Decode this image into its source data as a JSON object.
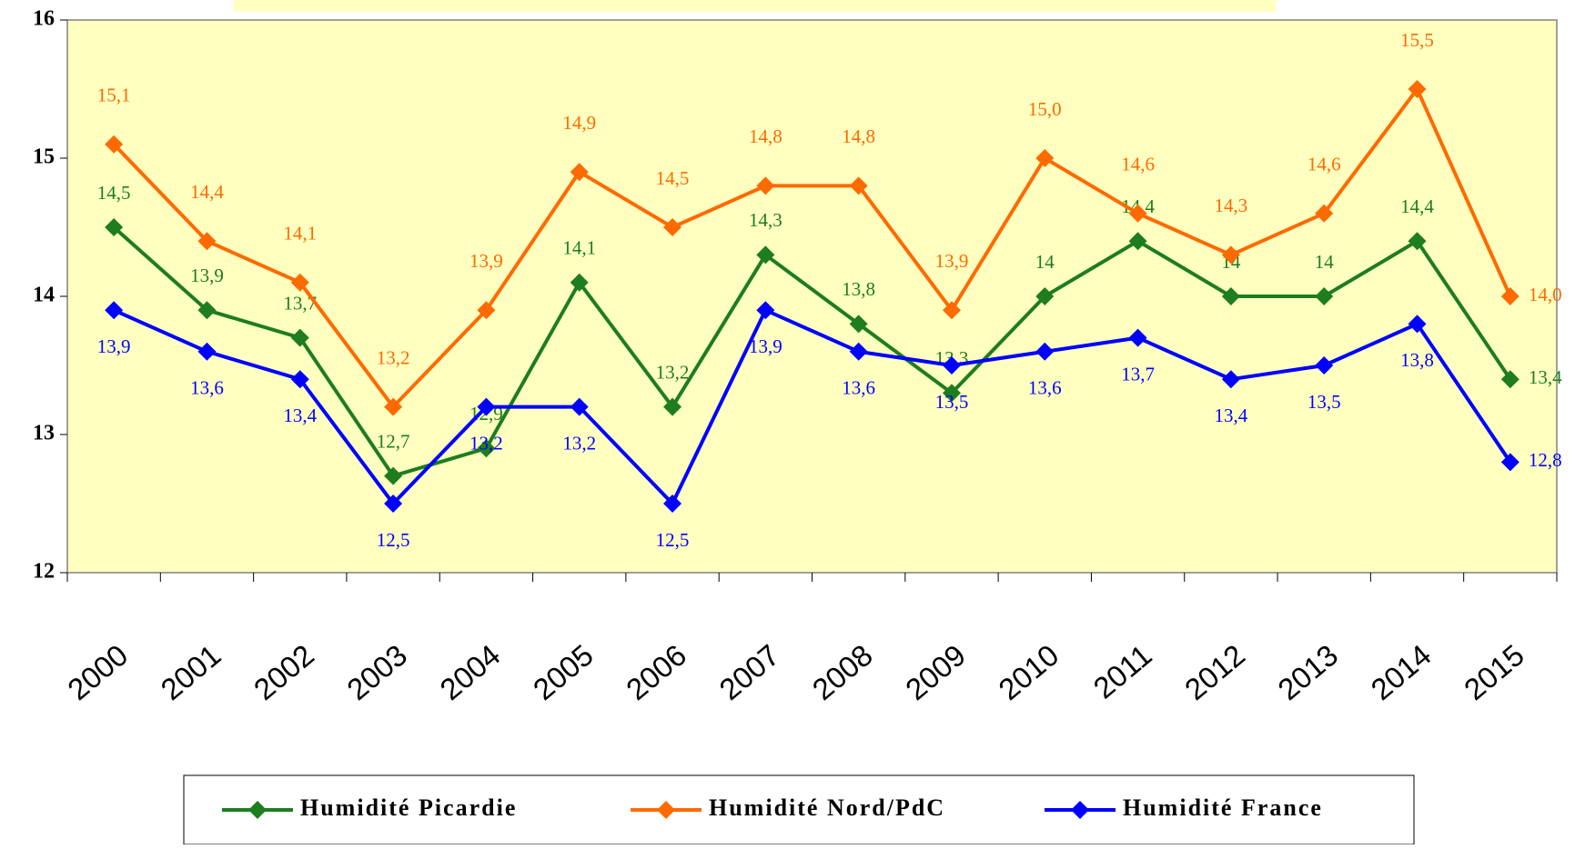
{
  "chart_data": {
    "type": "line",
    "categories": [
      "2000",
      "2001",
      "2002",
      "2003",
      "2004",
      "2005",
      "2006",
      "2007",
      "2008",
      "2009",
      "2010",
      "2011",
      "2012",
      "2013",
      "2014",
      "2015"
    ],
    "ylim": [
      12,
      16
    ],
    "yticks": [
      12,
      13,
      14,
      15,
      16
    ],
    "series": [
      {
        "name": "Humidité Picardie",
        "color": "#1e7d1e",
        "values": [
          14.5,
          13.9,
          13.7,
          12.7,
          12.9,
          14.1,
          13.2,
          14.3,
          13.8,
          13.3,
          14,
          14.4,
          14,
          14,
          14.4,
          13.4
        ],
        "value_labels": [
          "14,5",
          "13,9",
          "13,7",
          "12,7",
          "12,9",
          "14,1",
          "13,2",
          "14,3",
          "13,8",
          "13,3",
          "14",
          "14,4",
          "14",
          "14",
          "14,4",
          "13,4"
        ]
      },
      {
        "name": "Humidité Nord/PdC",
        "color": "#ff6a00",
        "values": [
          15.1,
          14.4,
          14.1,
          13.2,
          13.9,
          14.9,
          14.5,
          14.8,
          14.8,
          13.9,
          15.0,
          14.6,
          14.3,
          14.6,
          15.5,
          14.0
        ],
        "value_labels": [
          "15,1",
          "14,4",
          "14,1",
          "13,2",
          "13,9",
          "14,9",
          "14,5",
          "14,8",
          "14,8",
          "13,9",
          "15,0",
          "14,6",
          "14,3",
          "14,6",
          "15,5",
          "14,0"
        ]
      },
      {
        "name": "Humidité France",
        "color": "#0000ff",
        "values": [
          13.9,
          13.6,
          13.4,
          12.5,
          13.2,
          13.2,
          12.5,
          13.9,
          13.6,
          13.5,
          13.6,
          13.7,
          13.4,
          13.5,
          13.8,
          12.8
        ],
        "value_labels": [
          "13,9",
          "13,6",
          "13,4",
          "12,5",
          "13,2",
          "13,2",
          "12,5",
          "13,9",
          "13,6",
          "13,5",
          "13,6",
          "13,7",
          "13,4",
          "13,5",
          "13,8",
          "12,8"
        ]
      }
    ]
  }
}
